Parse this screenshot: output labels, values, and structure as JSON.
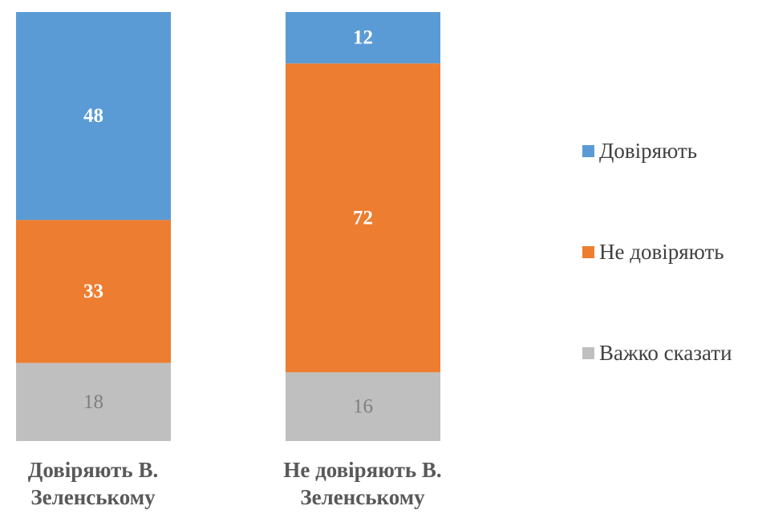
{
  "chart_data": {
    "type": "bar",
    "stacked": true,
    "normalized_percent": true,
    "categories": [
      "Довіряють В. Зеленському",
      "Не довіряють В. Зеленському"
    ],
    "category_lines": [
      [
        "Довіряють В.",
        "Зеленському"
      ],
      [
        "Не довіряють В.",
        "Зеленському"
      ]
    ],
    "series": [
      {
        "name": "Довіряють",
        "values": [
          48,
          12
        ],
        "color": "#5B9BD5",
        "label_color": "#FFFFFF",
        "label_bold": true
      },
      {
        "name": "Не довіряють",
        "values": [
          33,
          72
        ],
        "color": "#ED7D31",
        "label_color": "#FFFFFF",
        "label_bold": true
      },
      {
        "name": "Важко сказати",
        "values": [
          18,
          16
        ],
        "color": "#BFBFBF",
        "label_color": "#7F7F7F",
        "label_bold": false
      }
    ],
    "legend_position": "right",
    "grid": false,
    "axes_visible": false
  }
}
